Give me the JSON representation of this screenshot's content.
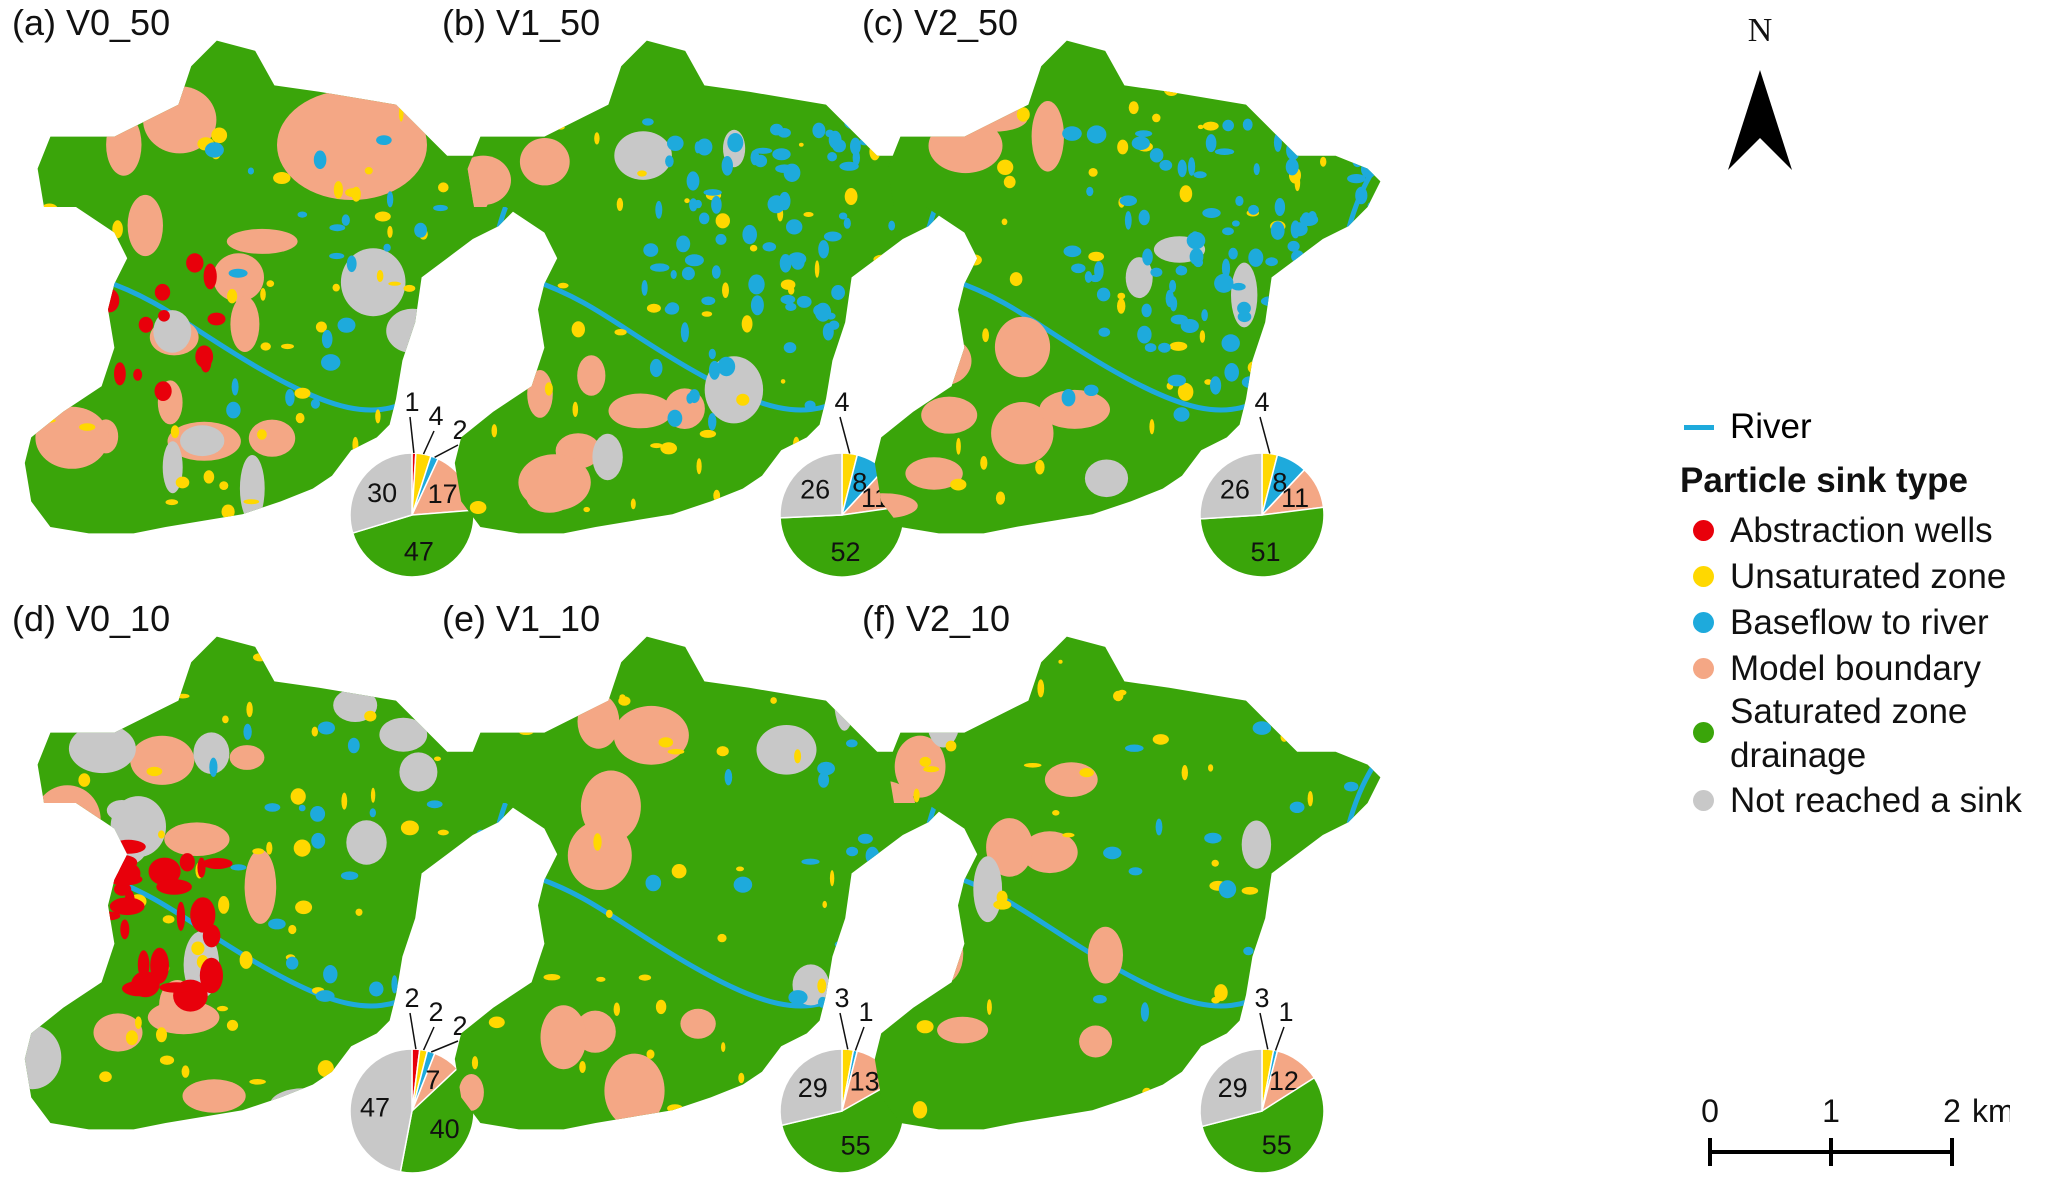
{
  "colors": {
    "abstraction_wells": "#e8000b",
    "unsaturated_zone": "#ffd800",
    "baseflow_to_river": "#1eaadc",
    "model_boundary": "#f4a785",
    "saturated_zone_drainage": "#3aa50a",
    "not_reached": "#c8c8c8",
    "river": "#1eaadc"
  },
  "panels": [
    {
      "label": "(a) V0_50",
      "slices": [
        {
          "category": "abstraction_wells",
          "value": 1,
          "label": "1"
        },
        {
          "category": "unsaturated_zone",
          "value": 4,
          "label": "4"
        },
        {
          "category": "baseflow_to_river",
          "value": 2,
          "label": "2"
        },
        {
          "category": "model_boundary",
          "value": 17,
          "label": "17"
        },
        {
          "category": "saturated_zone_drainage",
          "value": 47,
          "label": "47"
        },
        {
          "category": "not_reached",
          "value": 30,
          "label": "30"
        }
      ]
    },
    {
      "label": "(b) V1_50",
      "slices": [
        {
          "category": "unsaturated_zone",
          "value": 4,
          "label": "4"
        },
        {
          "category": "baseflow_to_river",
          "value": 8,
          "label": "8"
        },
        {
          "category": "model_boundary",
          "value": 11,
          "label": "11"
        },
        {
          "category": "saturated_zone_drainage",
          "value": 52,
          "label": "52"
        },
        {
          "category": "not_reached",
          "value": 26,
          "label": "26"
        }
      ]
    },
    {
      "label": "(c) V2_50",
      "slices": [
        {
          "category": "unsaturated_zone",
          "value": 4,
          "label": "4"
        },
        {
          "category": "baseflow_to_river",
          "value": 8,
          "label": "8"
        },
        {
          "category": "model_boundary",
          "value": 11,
          "label": "11"
        },
        {
          "category": "saturated_zone_drainage",
          "value": 51,
          "label": "51"
        },
        {
          "category": "not_reached",
          "value": 26,
          "label": "26"
        }
      ]
    },
    {
      "label": "(d) V0_10",
      "slices": [
        {
          "category": "abstraction_wells",
          "value": 2,
          "label": "2"
        },
        {
          "category": "unsaturated_zone",
          "value": 2,
          "label": "2"
        },
        {
          "category": "baseflow_to_river",
          "value": 2,
          "label": "2"
        },
        {
          "category": "model_boundary",
          "value": 7,
          "label": "7"
        },
        {
          "category": "saturated_zone_drainage",
          "value": 40,
          "label": "40"
        },
        {
          "category": "not_reached",
          "value": 47,
          "label": "47"
        }
      ]
    },
    {
      "label": "(e) V1_10",
      "slices": [
        {
          "category": "unsaturated_zone",
          "value": 3,
          "label": "3"
        },
        {
          "category": "baseflow_to_river",
          "value": 1,
          "label": "1"
        },
        {
          "category": "model_boundary",
          "value": 13,
          "label": "13"
        },
        {
          "category": "saturated_zone_drainage",
          "value": 55,
          "label": "55"
        },
        {
          "category": "not_reached",
          "value": 29,
          "label": "29"
        }
      ]
    },
    {
      "label": "(f) V2_10",
      "slices": [
        {
          "category": "unsaturated_zone",
          "value": 3,
          "label": "3"
        },
        {
          "category": "baseflow_to_river",
          "value": 1,
          "label": "1"
        },
        {
          "category": "model_boundary",
          "value": 12,
          "label": "12"
        },
        {
          "category": "saturated_zone_drainage",
          "value": 55,
          "label": "55"
        },
        {
          "category": "not_reached",
          "value": 29,
          "label": "29"
        }
      ]
    }
  ],
  "north_arrow": {
    "letter": "N",
    "icon": "north-arrow-icon"
  },
  "legend": {
    "river_label": "River",
    "title": "Particle sink type",
    "items": [
      {
        "category": "abstraction_wells",
        "label": "Abstraction wells"
      },
      {
        "category": "unsaturated_zone",
        "label": "Unsaturated zone"
      },
      {
        "category": "baseflow_to_river",
        "label": "Baseflow to river"
      },
      {
        "category": "model_boundary",
        "label": "Model boundary"
      },
      {
        "category": "saturated_zone_drainage",
        "label_line1": "Saturated zone",
        "label_line2": "drainage"
      },
      {
        "category": "not_reached",
        "label": "Not reached a sink"
      }
    ]
  },
  "scale_bar": {
    "ticks": [
      "0",
      "1",
      "2"
    ],
    "unit": "km"
  }
}
